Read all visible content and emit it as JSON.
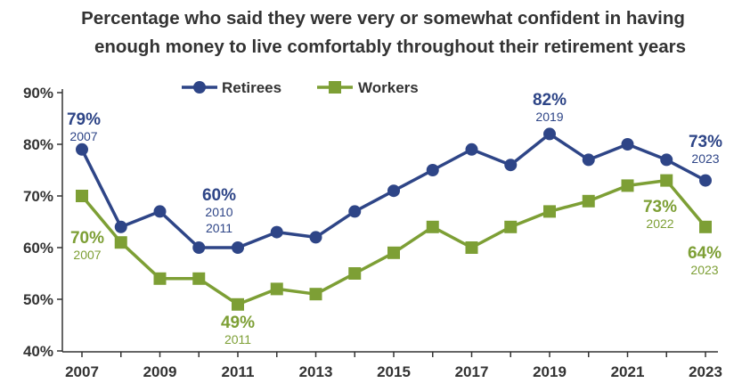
{
  "chart_data": {
    "type": "line",
    "title": "Percentage who said they were very or somewhat confident in having",
    "subtitle": "enough money to live comfortably throughout their retirement years",
    "x": [
      2007,
      2008,
      2009,
      2010,
      2011,
      2012,
      2013,
      2014,
      2015,
      2016,
      2017,
      2018,
      2019,
      2020,
      2021,
      2022,
      2023
    ],
    "x_tick_labels": [
      "2007",
      "2009",
      "2011",
      "2013",
      "2015",
      "2017",
      "2019",
      "2021",
      "2023"
    ],
    "y_tick_labels": [
      "40%",
      "50%",
      "60%",
      "70%",
      "80%",
      "90%"
    ],
    "ylim": [
      40,
      90
    ],
    "y_ticks": [
      40,
      50,
      60,
      70,
      80,
      90
    ],
    "x_ticks": [
      2007,
      2009,
      2011,
      2013,
      2015,
      2017,
      2019,
      2021,
      2023
    ],
    "grid": false,
    "legend": {
      "placement": "top-center"
    },
    "series": [
      {
        "name": "Retirees",
        "color": "#2e4587",
        "marker": "circle",
        "values": [
          79,
          64,
          67,
          60,
          60,
          63,
          62,
          67,
          71,
          75,
          79,
          76,
          82,
          77,
          80,
          77,
          73
        ]
      },
      {
        "name": "Workers",
        "color": "#7d9f35",
        "marker": "square",
        "values": [
          70,
          61,
          54,
          54,
          49,
          52,
          51,
          55,
          59,
          64,
          60,
          64,
          67,
          69,
          72,
          73,
          64
        ]
      }
    ],
    "annotations": [
      {
        "series": 0,
        "label": "79%",
        "sublabel": "2007"
      },
      {
        "series": 0,
        "label": "60%",
        "sublabel": "2010",
        "sublabel2": "2011"
      },
      {
        "series": 0,
        "label": "82%",
        "sublabel": "2019"
      },
      {
        "series": 0,
        "label": "73%",
        "sublabel": "2023"
      },
      {
        "series": 1,
        "label": "70%",
        "sublabel": "2007"
      },
      {
        "series": 1,
        "label": "49%",
        "sublabel": "2011"
      },
      {
        "series": 1,
        "label": "73%",
        "sublabel": "2022"
      },
      {
        "series": 1,
        "label": "64%",
        "sublabel": "2023"
      }
    ]
  }
}
